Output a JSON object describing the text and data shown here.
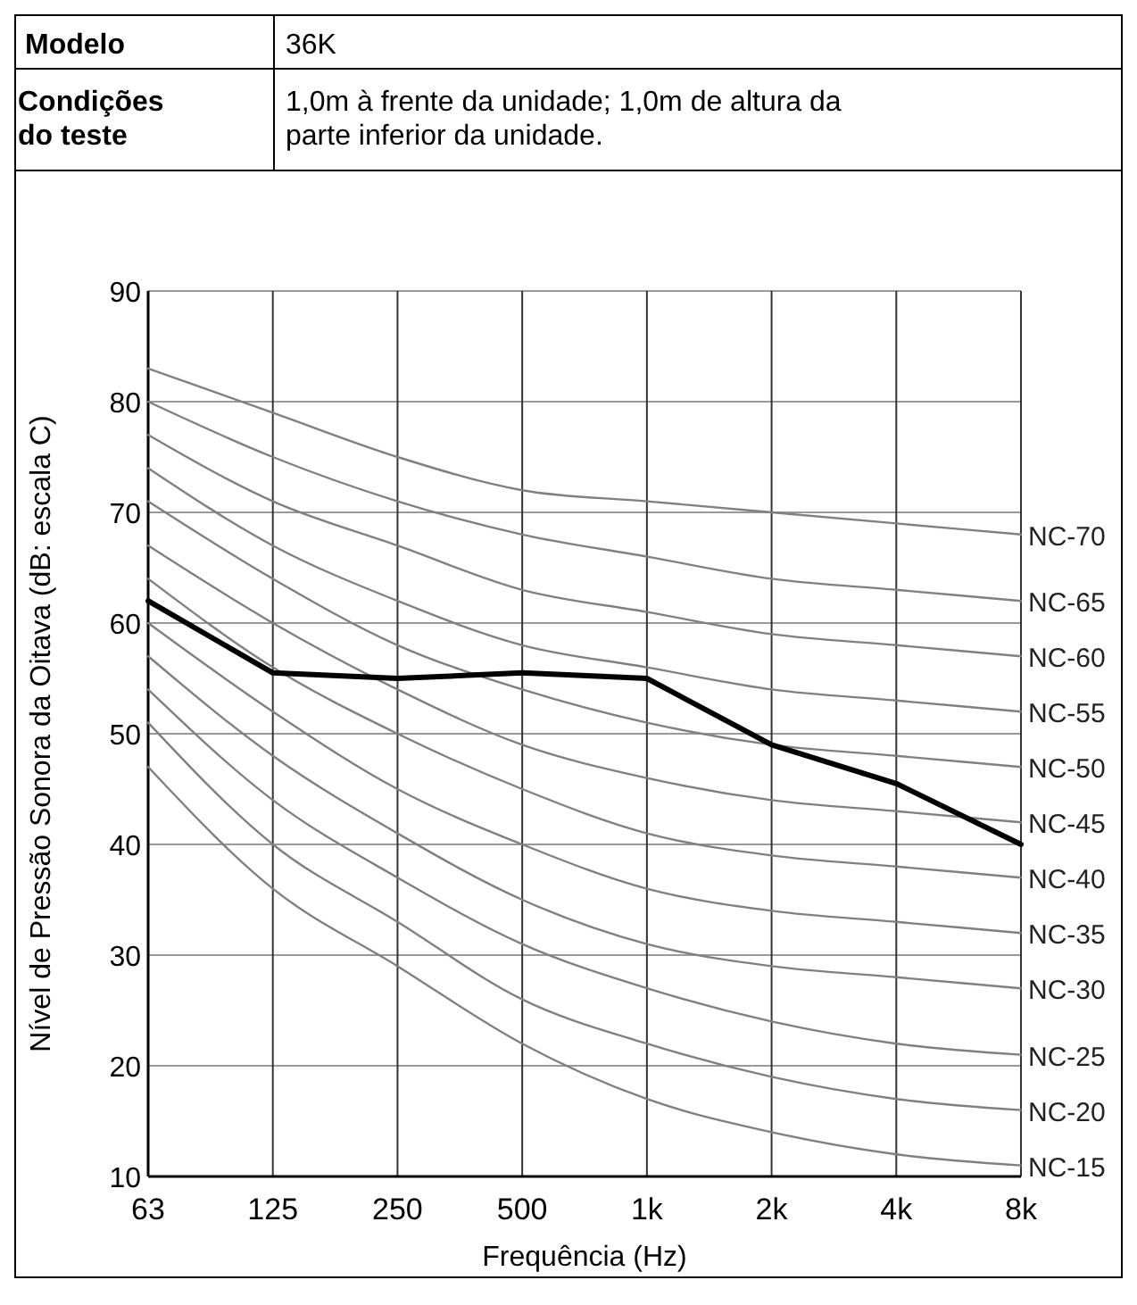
{
  "chart_data": {
    "type": "line",
    "annotations": [
      "Modelo",
      "36K",
      "Condições do teste",
      "1,0m à frente da unidade; 1,0m de altura da parte inferior da unidade."
    ],
    "xlabel": "Frequência (Hz)",
    "ylabel": "Nível de Pressão Sonora da Oitava (dB: escala C)",
    "categories": [
      "63",
      "125",
      "250",
      "500",
      "1k",
      "2k",
      "4k",
      "8k"
    ],
    "ylim": [
      10,
      90
    ],
    "yticks": [
      10,
      20,
      30,
      40,
      50,
      60,
      70,
      80,
      90
    ],
    "grid": true,
    "series": [
      {
        "name": "NC-70",
        "color": "#808080",
        "values": [
          83,
          79,
          75,
          72,
          71,
          70,
          69,
          68
        ]
      },
      {
        "name": "NC-65",
        "color": "#808080",
        "values": [
          80,
          75,
          71,
          68,
          66,
          64,
          63,
          62
        ]
      },
      {
        "name": "NC-60",
        "color": "#808080",
        "values": [
          77,
          71,
          67,
          63,
          61,
          59,
          58,
          57
        ]
      },
      {
        "name": "NC-55",
        "color": "#808080",
        "values": [
          74,
          67,
          62,
          58,
          56,
          54,
          53,
          52
        ]
      },
      {
        "name": "NC-50",
        "color": "#808080",
        "values": [
          71,
          64,
          58,
          54,
          51,
          49,
          48,
          47
        ]
      },
      {
        "name": "NC-45",
        "color": "#808080",
        "values": [
          67,
          60,
          54,
          49,
          46,
          44,
          43,
          42
        ]
      },
      {
        "name": "NC-40",
        "color": "#808080",
        "values": [
          64,
          56,
          50,
          45,
          41,
          39,
          38,
          37
        ]
      },
      {
        "name": "NC-35",
        "color": "#808080",
        "values": [
          60,
          52,
          45,
          40,
          36,
          34,
          33,
          32
        ]
      },
      {
        "name": "NC-30",
        "color": "#808080",
        "values": [
          57,
          48,
          41,
          35,
          31,
          29,
          28,
          27
        ]
      },
      {
        "name": "NC-25",
        "color": "#808080",
        "values": [
          54,
          44,
          37,
          31,
          27,
          24,
          22,
          21
        ]
      },
      {
        "name": "NC-20",
        "color": "#808080",
        "values": [
          51,
          40,
          33,
          26,
          22,
          19,
          17,
          16
        ]
      },
      {
        "name": "NC-15",
        "color": "#808080",
        "values": [
          47,
          36,
          29,
          22,
          17,
          14,
          12,
          11
        ]
      },
      {
        "color": "#000000",
        "values": [
          62,
          55.5,
          55,
          55.5,
          55,
          49,
          45.5,
          40
        ]
      }
    ]
  }
}
